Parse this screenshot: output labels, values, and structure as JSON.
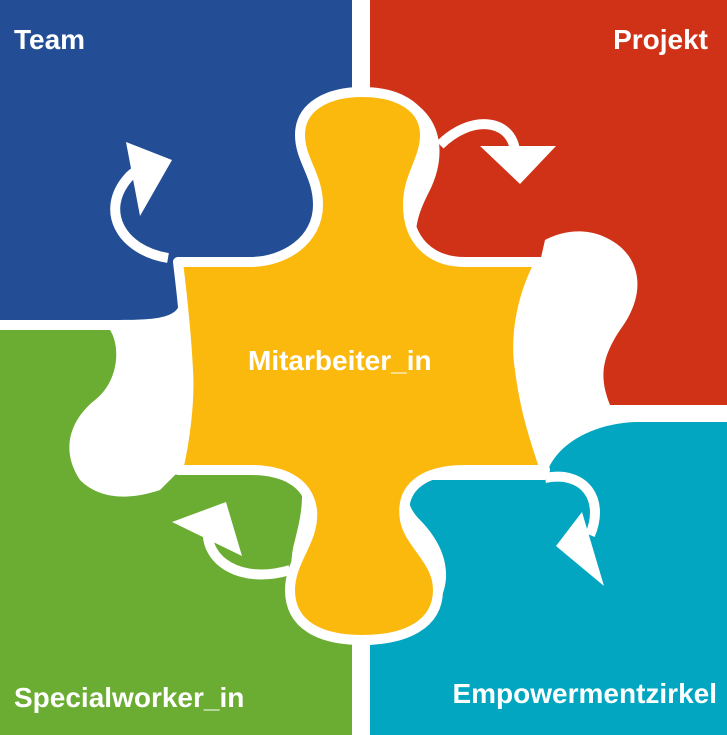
{
  "pieces": {
    "team": {
      "label": "Team",
      "color": "#234e95"
    },
    "projekt": {
      "label": "Projekt",
      "color": "#d03218"
    },
    "specialworker": {
      "label": "Specialworker_in",
      "color": "#6aad32"
    },
    "empowerment": {
      "label": "Empowermentzirkel",
      "color": "#02a6c1"
    },
    "center": {
      "label": "Mitarbeiter_in",
      "color": "#fbb90e"
    }
  },
  "arrow_color": "#ffffff",
  "border_color": "#ffffff"
}
